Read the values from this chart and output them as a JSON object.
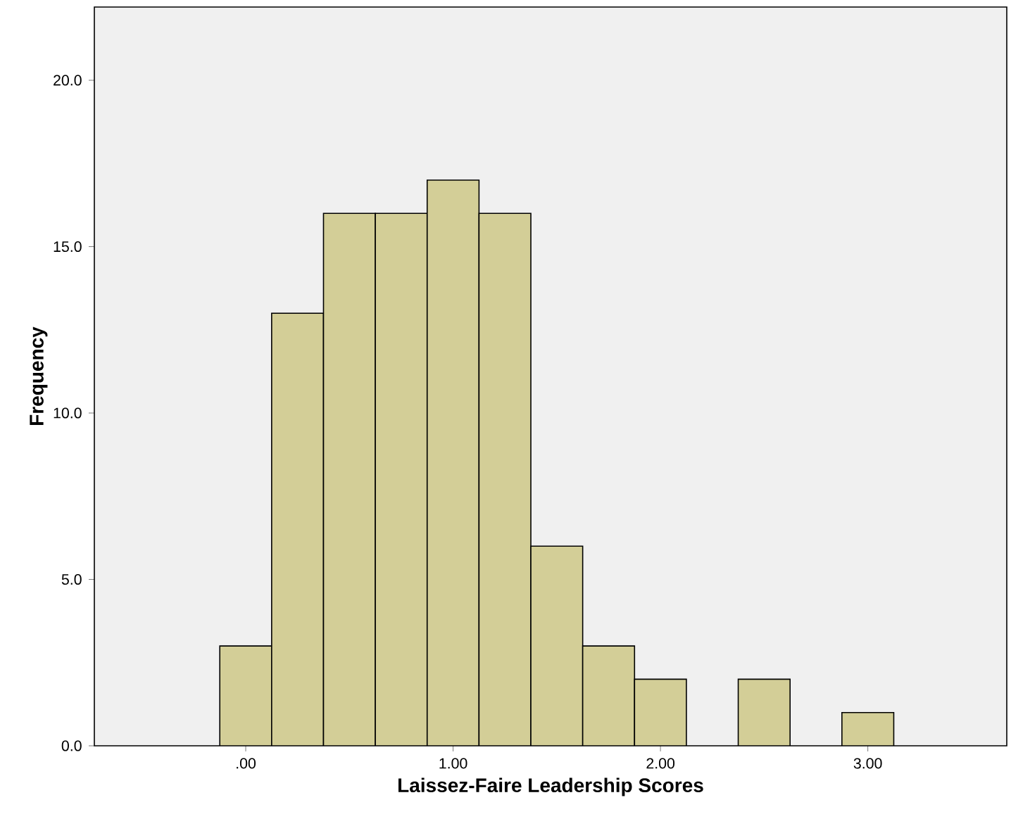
{
  "chart_data": {
    "type": "histogram",
    "xlabel": "Laissez-Faire Leadership Scores",
    "ylabel": "Frequency",
    "bins": [
      -0.125,
      0.125,
      0.375,
      0.625,
      0.875,
      1.125,
      1.375,
      1.625,
      1.875,
      2.125,
      2.375,
      2.625,
      2.875,
      3.125
    ],
    "values": [
      3,
      13,
      16,
      16,
      17,
      16,
      6,
      3,
      2,
      0,
      2,
      0,
      1
    ],
    "color": "#d3ce97",
    "xlim": [
      -0.73,
      3.67
    ],
    "ylim": [
      0,
      22.2
    ],
    "xticks": [
      {
        "value": 0,
        "label": ".00"
      },
      {
        "value": 1,
        "label": "1.00"
      },
      {
        "value": 2,
        "label": "2.00"
      },
      {
        "value": 3,
        "label": "3.00"
      }
    ],
    "yticks": [
      {
        "value": 0,
        "label": "0.0"
      },
      {
        "value": 5,
        "label": "5.0"
      },
      {
        "value": 10,
        "label": "10.0"
      },
      {
        "value": 15,
        "label": "15.0"
      },
      {
        "value": 20,
        "label": "20.0"
      }
    ],
    "grid": false
  }
}
